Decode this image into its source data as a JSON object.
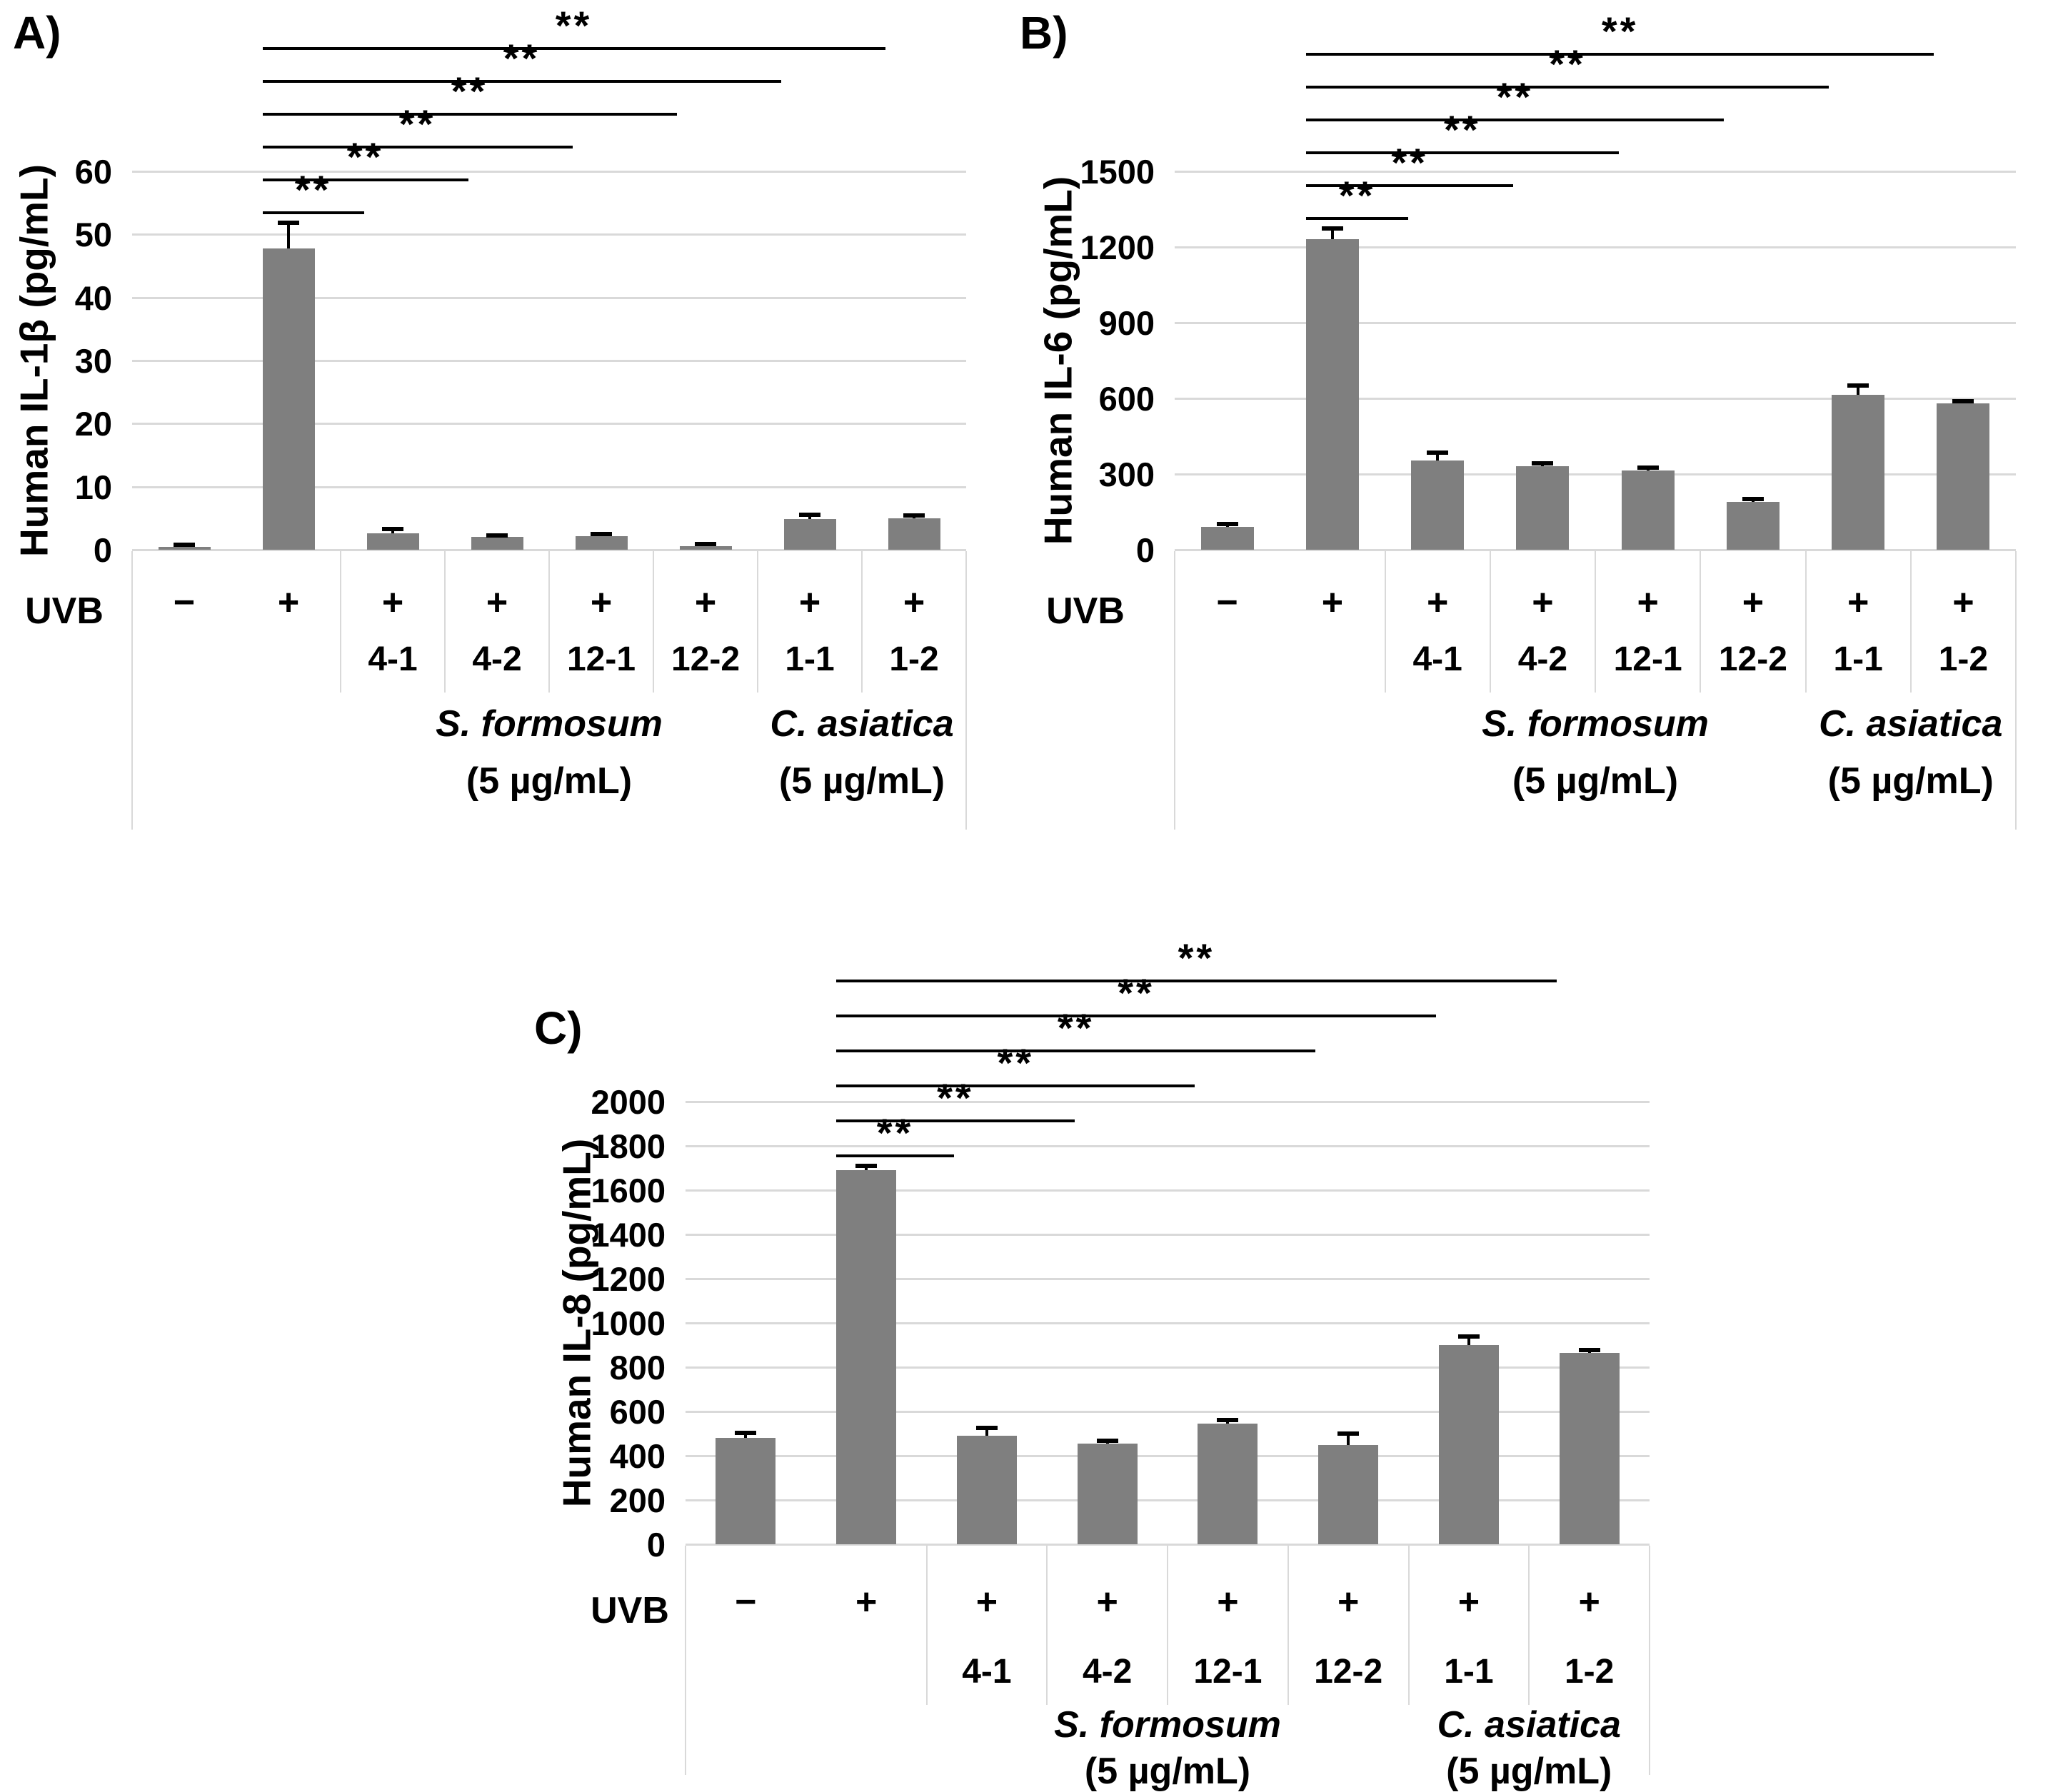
{
  "figure": {
    "background": "#ffffff",
    "bar_color": "#7f7f7f",
    "gridline_color": "#d9d9d9",
    "error_bar_color": "#000000",
    "significance_label": "**",
    "x_axis_row_label": "UVB"
  },
  "chart_data": [
    {
      "type": "bar",
      "panel_label": "A)",
      "ylabel": "Human IL-1β (pg/mL)",
      "ylim": [
        0,
        60
      ],
      "ytick_step": 10,
      "ytick_labels": [
        "0",
        "10",
        "20",
        "30",
        "40",
        "50",
        "60"
      ],
      "x_axis_row_label": "UVB",
      "uvb_signs": [
        "−",
        "+",
        "+",
        "+",
        "+",
        "+",
        "+",
        "+"
      ],
      "sample_labels": [
        "",
        "",
        "4-1",
        "4-2",
        "12-1",
        "12-2",
        "1-1",
        "1-2"
      ],
      "values": [
        0.4,
        47.8,
        2.6,
        2.0,
        2.2,
        0.6,
        4.9,
        5.0
      ],
      "errors": [
        0.35,
        4.0,
        0.7,
        0.3,
        0.3,
        0.25,
        0.7,
        0.4
      ],
      "groups": [
        {
          "name": "S. formosum",
          "dose": "(5 µg/mL)",
          "start": 2,
          "span": 4
        },
        {
          "name": "C. asiatica",
          "dose": "(5 µg/mL)",
          "start": 6,
          "span": 2
        }
      ],
      "significance": [
        {
          "from": 1,
          "to": 2,
          "label": "**"
        },
        {
          "from": 1,
          "to": 3,
          "label": "**"
        },
        {
          "from": 1,
          "to": 4,
          "label": "**"
        },
        {
          "from": 1,
          "to": 5,
          "label": "**"
        },
        {
          "from": 1,
          "to": 6,
          "label": "**"
        },
        {
          "from": 1,
          "to": 7,
          "label": "**"
        }
      ]
    },
    {
      "type": "bar",
      "panel_label": "B)",
      "ylabel": "Human IL-6 (pg/mL)",
      "ylim": [
        0,
        1500
      ],
      "ytick_step": 300,
      "ytick_labels": [
        "0",
        "300",
        "600",
        "900",
        "1200",
        "1500"
      ],
      "x_axis_row_label": "UVB",
      "uvb_signs": [
        "−",
        "+",
        "+",
        "+",
        "+",
        "+",
        "+",
        "+"
      ],
      "sample_labels": [
        "",
        "",
        "4-1",
        "4-2",
        "12-1",
        "12-2",
        "1-1",
        "1-2"
      ],
      "values": [
        90,
        1230,
        355,
        330,
        315,
        190,
        615,
        580
      ],
      "errors": [
        12,
        45,
        30,
        12,
        10,
        10,
        35,
        10
      ],
      "groups": [
        {
          "name": "S. formosum",
          "dose": "(5 µg/mL)",
          "start": 2,
          "span": 4
        },
        {
          "name": "C. asiatica",
          "dose": "(5 µg/mL)",
          "start": 6,
          "span": 2
        }
      ],
      "significance": [
        {
          "from": 1,
          "to": 2,
          "label": "**"
        },
        {
          "from": 1,
          "to": 3,
          "label": "**"
        },
        {
          "from": 1,
          "to": 4,
          "label": "**"
        },
        {
          "from": 1,
          "to": 5,
          "label": "**"
        },
        {
          "from": 1,
          "to": 6,
          "label": "**"
        },
        {
          "from": 1,
          "to": 7,
          "label": "**"
        }
      ]
    },
    {
      "type": "bar",
      "panel_label": "C)",
      "ylabel": "Human IL-8 (pg/mL)",
      "ylim": [
        0,
        2000
      ],
      "ytick_step": 200,
      "ytick_labels": [
        "0",
        "200",
        "400",
        "600",
        "800",
        "1000",
        "1200",
        "1400",
        "1600",
        "1800",
        "2000"
      ],
      "x_axis_row_label": "UVB",
      "uvb_signs": [
        "−",
        "+",
        "+",
        "+",
        "+",
        "+",
        "+",
        "+"
      ],
      "sample_labels": [
        "",
        "",
        "4-1",
        "4-2",
        "12-1",
        "12-2",
        "1-1",
        "1-2"
      ],
      "values": [
        480,
        1690,
        490,
        455,
        545,
        450,
        900,
        865
      ],
      "errors": [
        22,
        20,
        35,
        12,
        15,
        50,
        40,
        12
      ],
      "groups": [
        {
          "name": "S. formosum",
          "dose": "(5 µg/mL)",
          "start": 2,
          "span": 4
        },
        {
          "name": "C. asiatica",
          "dose": "(5 µg/mL)",
          "start": 6,
          "span": 2
        }
      ],
      "significance": [
        {
          "from": 1,
          "to": 2,
          "label": "**"
        },
        {
          "from": 1,
          "to": 3,
          "label": "**"
        },
        {
          "from": 1,
          "to": 4,
          "label": "**"
        },
        {
          "from": 1,
          "to": 5,
          "label": "**"
        },
        {
          "from": 1,
          "to": 6,
          "label": "**"
        },
        {
          "from": 1,
          "to": 7,
          "label": "**"
        }
      ]
    }
  ]
}
